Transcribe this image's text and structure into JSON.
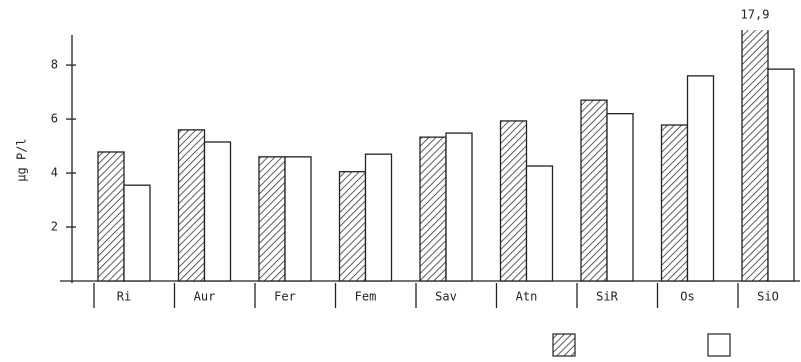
{
  "chart_data": {
    "type": "bar",
    "y_label": "µg P/l",
    "categories": [
      "Ri",
      "Aur",
      "Fer",
      "Fem",
      "Sav",
      "Atn",
      "SiR",
      "Os",
      "SiO"
    ],
    "series": [
      {
        "color": "#333333",
        "pattern": "hatch",
        "values": [
          4.78,
          5.6,
          4.6,
          4.05,
          5.33,
          5.93,
          6.7,
          5.78,
          17.9
        ],
        "value_labels": [
          null,
          null,
          null,
          null,
          null,
          null,
          null,
          null,
          "17,9"
        ]
      },
      {
        "color": "#ffffff",
        "pattern": "solid",
        "values": [
          3.55,
          5.15,
          4.6,
          4.7,
          5.48,
          4.26,
          6.2,
          7.6,
          7.85
        ]
      }
    ],
    "ylim": [
      0,
      9.3
    ],
    "yticks": [
      2,
      4,
      6,
      8
    ]
  }
}
